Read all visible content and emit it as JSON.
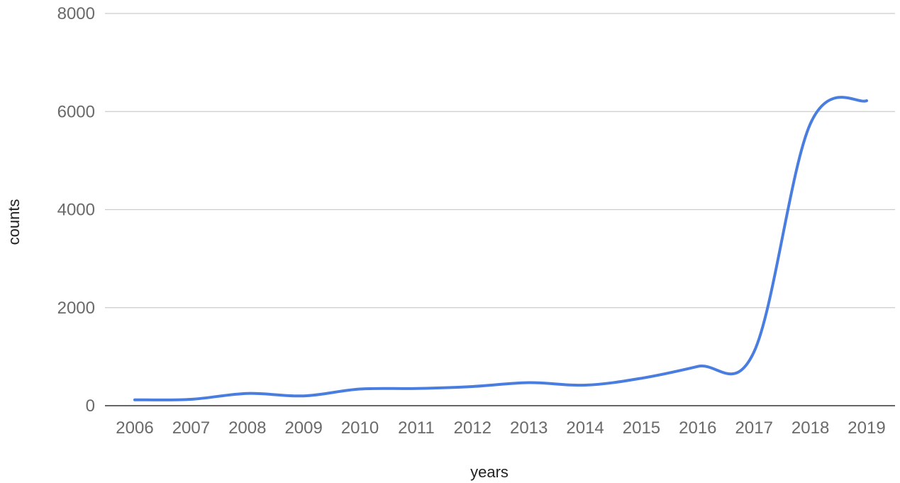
{
  "chart_data": {
    "type": "line",
    "title": "",
    "xlabel": "years",
    "ylabel": "counts",
    "x": [
      "2006",
      "2007",
      "2008",
      "2009",
      "2010",
      "2011",
      "2012",
      "2013",
      "2014",
      "2015",
      "2016",
      "2017",
      "2018",
      "2019"
    ],
    "series": [
      {
        "values": [
          120,
          130,
          250,
          200,
          340,
          350,
          390,
          470,
          420,
          560,
          800,
          1100,
          5750,
          6220
        ],
        "color": "#4a7de0"
      }
    ],
    "ylim": [
      0,
      8000
    ],
    "yticks": [
      "0",
      "2000",
      "4000",
      "6000",
      "8000"
    ],
    "grid": true,
    "legend": "none"
  }
}
